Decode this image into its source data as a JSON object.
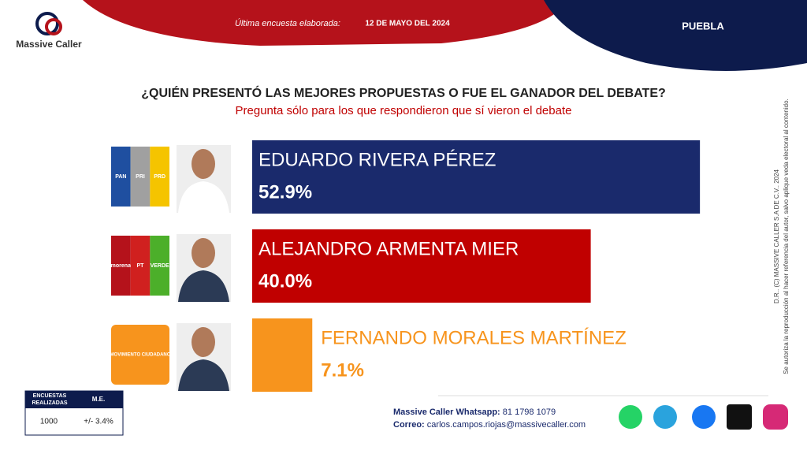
{
  "header": {
    "logo": "Massive Caller",
    "survey_label": "Última encuesta elaborada:",
    "survey_date": "12 DE MAYO DEL 2024",
    "region": "PUEBLA"
  },
  "chart_data": {
    "type": "bar",
    "orientation": "horizontal",
    "title": "¿QUIÉN PRESENTÓ LAS MEJORES PROPUESTAS O FUE EL GANADOR DEL DEBATE?",
    "subtitle": "Pregunta sólo para los que respondieron que sí vieron el debate",
    "categories": [
      "EDUARDO RIVERA PÉREZ",
      "ALEJANDRO ARMENTA MIER",
      "FERNANDO MORALES MARTÍNEZ"
    ],
    "values": [
      52.9,
      40.0,
      7.1
    ],
    "value_labels": [
      "52.9%",
      "40.0%",
      "7.1%"
    ],
    "colors": [
      "#1a2a6c",
      "#c00000",
      "#f7941d"
    ],
    "parties": [
      [
        "PAN",
        "PRI",
        "PRD"
      ],
      [
        "morena",
        "PT",
        "VERDE"
      ],
      [
        "MOVIMIENTO CIUDADANO"
      ]
    ]
  },
  "table": {
    "headers": [
      "ENCUESTAS REALIZADAS",
      "M.E."
    ],
    "row": [
      "1000",
      "+/- 3.4%"
    ]
  },
  "footer": {
    "whatsapp_label": "Massive Caller Whatsapp:",
    "whatsapp": "81 1798 1079",
    "email_label": "Correo:",
    "email": "carlos.campos.riojas@massivecaller.com"
  },
  "side_note": [
    "D.R.. (C) MASSIVE CALLER S.A DE C.V.. 2024",
    "Se autoriza la reproducción al hacer referencia del autor, salvo aplique veda electoral al contenido."
  ]
}
